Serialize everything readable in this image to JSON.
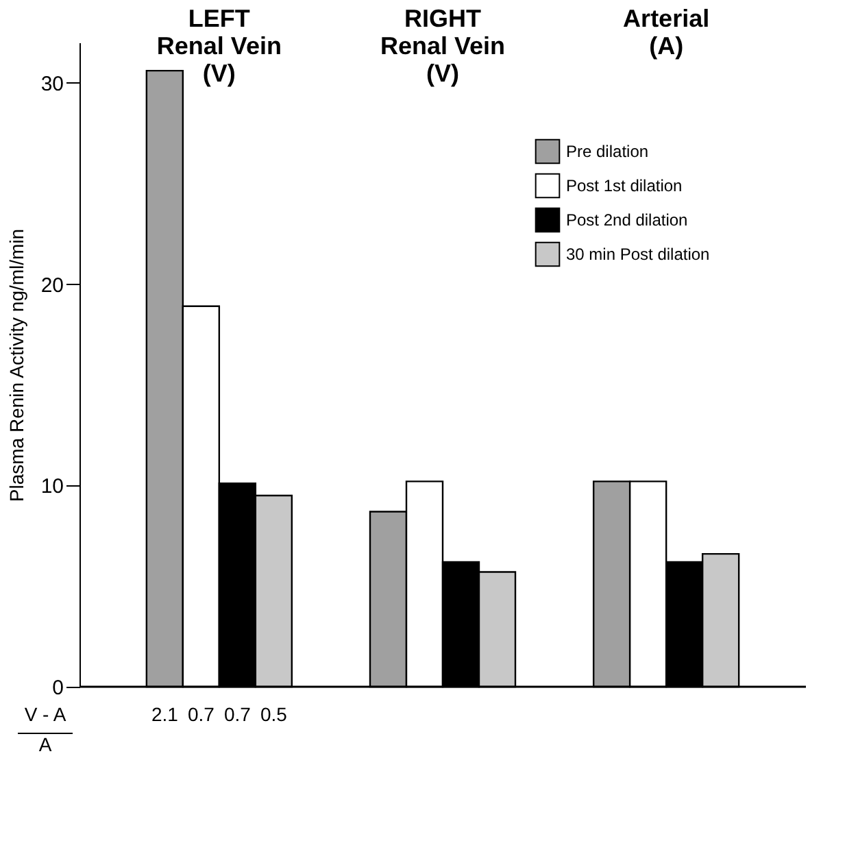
{
  "chart_data": {
    "type": "bar",
    "ylabel": "Plasma Renin Activity ng/ml/min",
    "categories": [
      "LEFT\nRenal Vein\n(V)",
      "RIGHT\nRenal Vein\n(V)",
      "Arterial\n(A)"
    ],
    "series": [
      {
        "name": "Pre dilation",
        "color": "#a0a0a0",
        "values": [
          30.6,
          8.7,
          10.2
        ]
      },
      {
        "name": "Post 1st dilation",
        "color": "#ffffff",
        "values": [
          18.9,
          10.2,
          10.2
        ]
      },
      {
        "name": "Post 2nd dilation",
        "color": "#000000",
        "values": [
          10.1,
          6.2,
          6.2
        ]
      },
      {
        "name": "30 min Post dilation",
        "color": "#c8c8c8",
        "values": [
          9.5,
          5.7,
          6.6
        ]
      }
    ],
    "ylim": [
      0,
      32
    ],
    "yticks": [
      0,
      10,
      20,
      30
    ],
    "grid": false,
    "legend": "top right",
    "annotations": [
      "V - A\nA",
      "2.1",
      "0.7",
      "0.7",
      "0.5"
    ]
  }
}
